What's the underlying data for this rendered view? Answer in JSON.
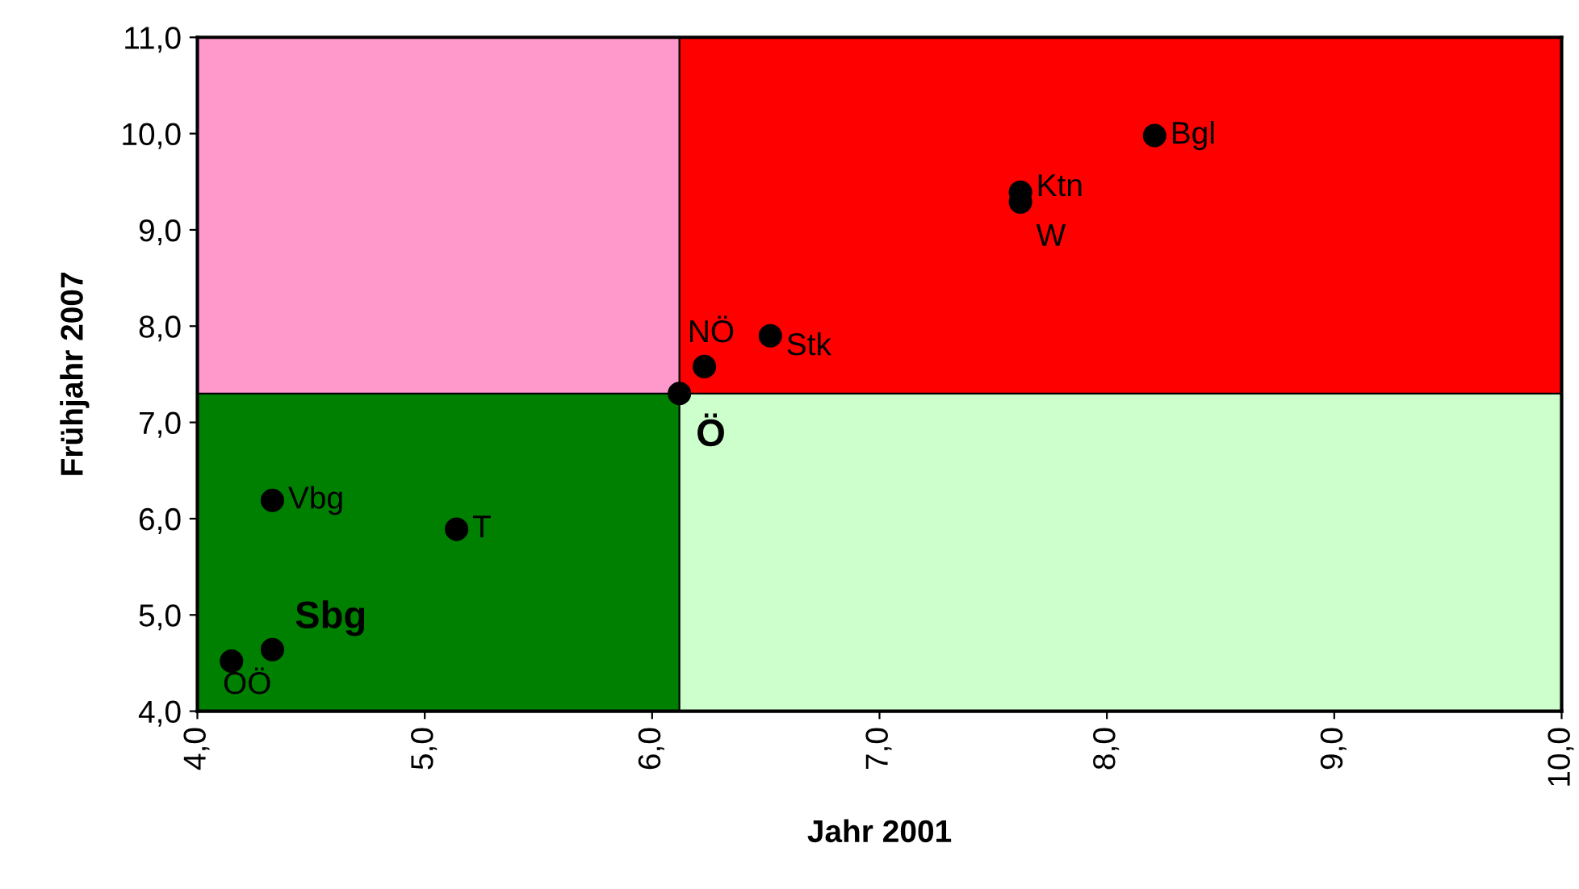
{
  "chart_data": {
    "type": "scatter",
    "xlabel": "Jahr 2001",
    "ylabel": "Frühjahr 2007",
    "x": [
      8.21,
      7.62,
      7.62,
      6.23,
      6.52,
      6.12,
      4.33,
      5.14,
      4.33,
      4.15
    ],
    "series": [
      {
        "color": "#000000",
        "values": [
          9.98,
          9.39,
          9.29,
          7.58,
          7.9,
          7.3,
          6.19,
          5.89,
          4.64,
          4.52
        ]
      }
    ],
    "marker": "circle",
    "grid": false,
    "legend": false,
    "xlim": [
      4.0,
      10.0
    ],
    "ylim": [
      4.0,
      11.0
    ],
    "xticks": [
      {
        "value": 4,
        "label": "4,0"
      },
      {
        "value": 5,
        "label": "5,0"
      },
      {
        "value": 6,
        "label": "6,0"
      },
      {
        "value": 7,
        "label": "7,0"
      },
      {
        "value": 8,
        "label": "8,0"
      },
      {
        "value": 9,
        "label": "9,0"
      },
      {
        "value": 10,
        "label": "10,0"
      }
    ],
    "yticks": [
      {
        "value": 4,
        "label": "4,0"
      },
      {
        "value": 5,
        "label": "5,0"
      },
      {
        "value": 6,
        "label": "6,0"
      },
      {
        "value": 7,
        "label": "7,0"
      },
      {
        "value": 8,
        "label": "8,0"
      },
      {
        "value": 9,
        "label": "9,0"
      },
      {
        "value": 10,
        "label": "10,0"
      },
      {
        "value": 11,
        "label": "11,0"
      }
    ],
    "ref_lines": [
      {
        "axis": "x",
        "value": 6.12,
        "color": "#000000"
      },
      {
        "axis": "y",
        "value": 7.3,
        "color": "#000000"
      }
    ],
    "annotations": [
      {
        "text": "Bgl",
        "x": 8.21,
        "y": 9.98
      },
      {
        "text": "Ktn",
        "x": 7.62,
        "y": 9.39
      },
      {
        "text": "W",
        "x": 7.62,
        "y": 9.29
      },
      {
        "text": "NÖ",
        "x": 6.23,
        "y": 7.58
      },
      {
        "text": "Stk",
        "x": 6.52,
        "y": 7.9
      },
      {
        "text": "Ö",
        "x": 6.12,
        "y": 7.3
      },
      {
        "text": "Vbg",
        "x": 4.33,
        "y": 6.19
      },
      {
        "text": "T",
        "x": 5.14,
        "y": 5.89
      },
      {
        "text": "Sbg",
        "x": 4.33,
        "y": 4.64
      },
      {
        "text": "OÖ",
        "x": 4.15,
        "y": 4.52
      }
    ]
  }
}
